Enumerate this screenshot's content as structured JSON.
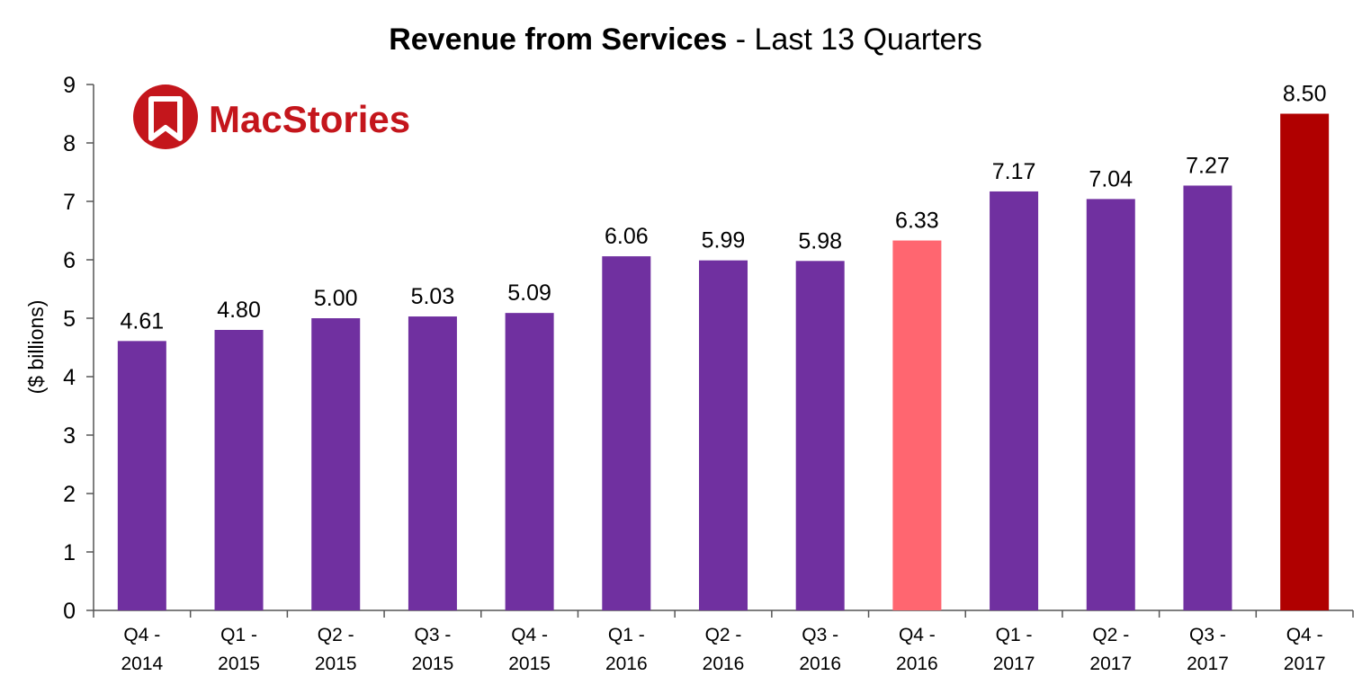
{
  "chart_data": {
    "type": "bar",
    "title_bold": "Revenue from Services",
    "title_rest": " - Last 13 Quarters",
    "xlabel": "",
    "ylabel": "($ billions)",
    "ylim": [
      0,
      9
    ],
    "yticks": [
      "0",
      "1",
      "2",
      "3",
      "4",
      "5",
      "6",
      "7",
      "8",
      "9"
    ],
    "grid": false,
    "categories": [
      [
        "Q4 -",
        "2014"
      ],
      [
        "Q1 -",
        "2015"
      ],
      [
        "Q2 -",
        "2015"
      ],
      [
        "Q3 -",
        "2015"
      ],
      [
        "Q4 -",
        "2015"
      ],
      [
        "Q1 -",
        "2016"
      ],
      [
        "Q2 -",
        "2016"
      ],
      [
        "Q3 -",
        "2016"
      ],
      [
        "Q4 -",
        "2016"
      ],
      [
        "Q1 -",
        "2017"
      ],
      [
        "Q2 -",
        "2017"
      ],
      [
        "Q3 -",
        "2017"
      ],
      [
        "Q4 -",
        "2017"
      ]
    ],
    "values": [
      4.61,
      4.8,
      5.0,
      5.03,
      5.09,
      6.06,
      5.99,
      5.98,
      6.33,
      7.17,
      7.04,
      7.27,
      8.5
    ],
    "value_labels": [
      "4.61",
      "4.80",
      "5.00",
      "5.03",
      "5.09",
      "6.06",
      "5.99",
      "5.98",
      "6.33",
      "7.17",
      "7.04",
      "7.27",
      "8.50"
    ],
    "bar_colors": [
      "#7030a0",
      "#7030a0",
      "#7030a0",
      "#7030a0",
      "#7030a0",
      "#7030a0",
      "#7030a0",
      "#7030a0",
      "#ff6670",
      "#7030a0",
      "#7030a0",
      "#7030a0",
      "#b00000"
    ]
  },
  "logo": {
    "text": "MacStories",
    "color": "#c4161c"
  }
}
